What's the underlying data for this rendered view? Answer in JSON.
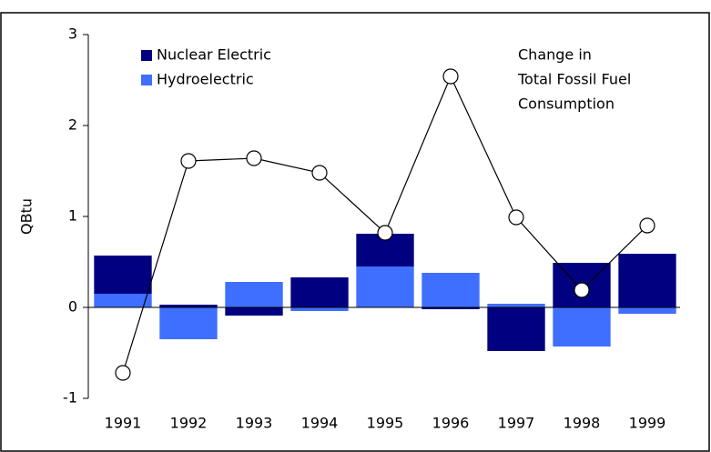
{
  "chart_data": {
    "type": "bar_line",
    "y_label": "QBtu",
    "categories": [
      "1991",
      "1992",
      "1993",
      "1994",
      "1995",
      "1996",
      "1997",
      "1998",
      "1999"
    ],
    "series": [
      {
        "name": "Hydroelectric",
        "color": "#3f6fff",
        "values": [
          0.15,
          -0.35,
          0.28,
          -0.04,
          0.45,
          0.38,
          0.04,
          -0.43,
          -0.07
        ]
      },
      {
        "name": "Nuclear Electric",
        "color": "#000080",
        "values": [
          0.42,
          0.03,
          -0.09,
          0.33,
          0.36,
          -0.02,
          -0.48,
          0.49,
          0.59
        ]
      }
    ],
    "line": {
      "color": "#000000",
      "values": [
        -0.72,
        1.61,
        1.64,
        1.48,
        0.82,
        2.54,
        0.99,
        0.19,
        0.9
      ]
    },
    "annotation": [
      "Change in",
      "Total Fossil Fuel",
      "Consumption"
    ],
    "ylim": [
      -1,
      3
    ],
    "yticks": [
      -1,
      0,
      1,
      2,
      3
    ]
  }
}
